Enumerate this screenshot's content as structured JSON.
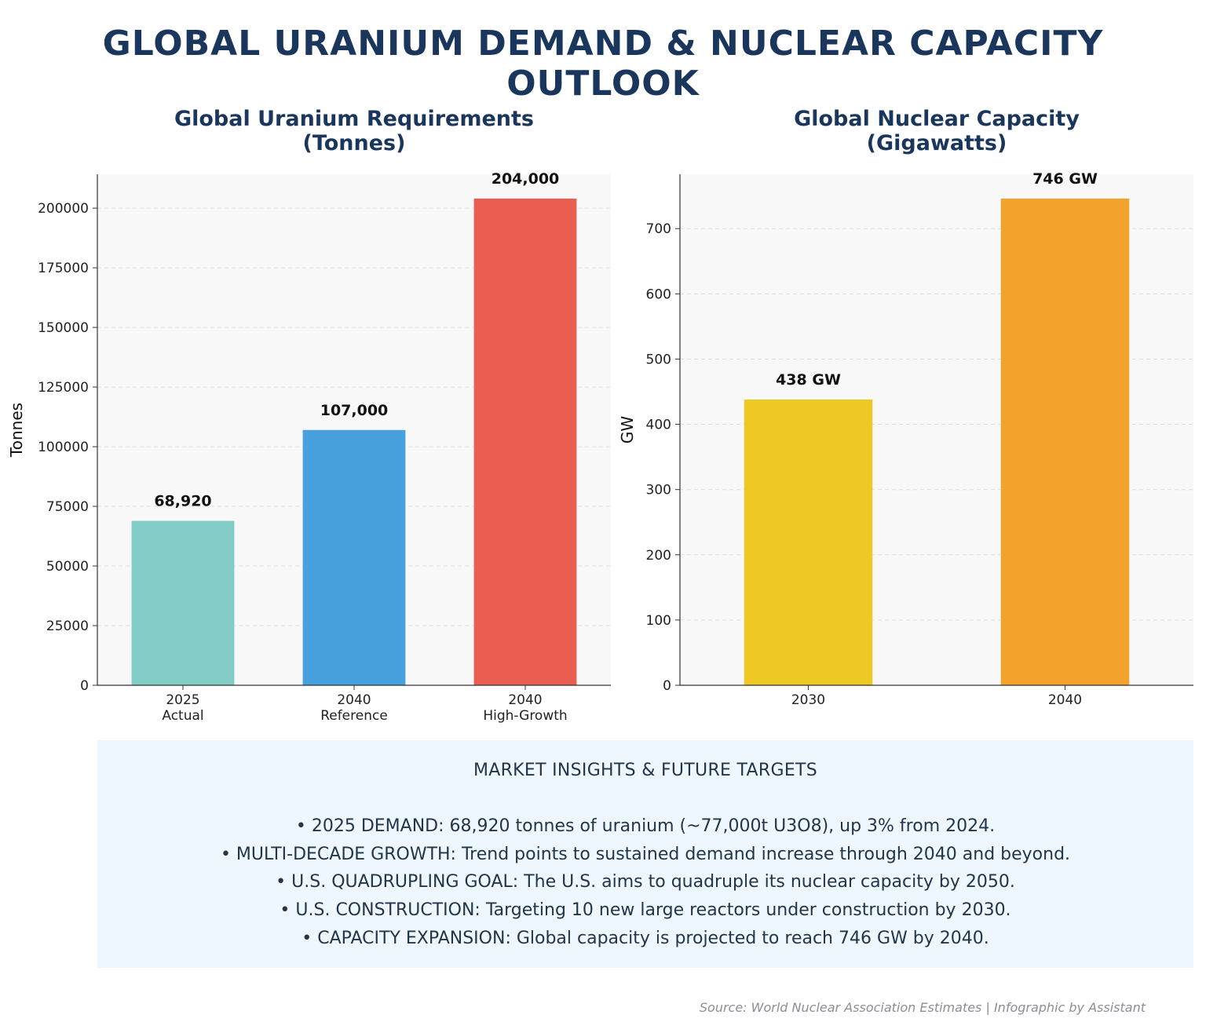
{
  "page": {
    "title": "GLOBAL URANIUM DEMAND & NUCLEAR CAPACITY OUTLOOK",
    "source": "Source: World Nuclear Association Estimates | Infographic by Assistant"
  },
  "chart_data": [
    {
      "type": "bar",
      "title": "Global Uranium Requirements\n(Tonnes)",
      "xlabel": "",
      "ylabel": "Tonnes",
      "categories": [
        "2025\nActual",
        "2040\nReference",
        "2040\nHigh-Growth"
      ],
      "values": [
        68920,
        107000,
        204000
      ],
      "data_labels": [
        "68,920",
        "107,000",
        "204,000"
      ],
      "colors": [
        "#83cbc5",
        "#48a1de",
        "#e95e51"
      ],
      "ylim": [
        0,
        214200
      ],
      "yticks": [
        0,
        25000,
        50000,
        75000,
        100000,
        125000,
        150000,
        175000,
        200000
      ],
      "grid": true,
      "legend": "none"
    },
    {
      "type": "bar",
      "title": "Global Nuclear Capacity\n(Gigawatts)",
      "xlabel": "",
      "ylabel": "GW",
      "categories": [
        "2030",
        "2040"
      ],
      "values": [
        438,
        746
      ],
      "data_labels": [
        "438 GW",
        "746 GW"
      ],
      "colors": [
        "#eec825",
        "#f1a32c"
      ],
      "ylim": [
        0,
        783.3
      ],
      "yticks": [
        0,
        100,
        200,
        300,
        400,
        500,
        600,
        700
      ],
      "grid": true,
      "legend": "none"
    }
  ],
  "insights": {
    "heading": "MARKET INSIGHTS & FUTURE TARGETS",
    "items": [
      "• 2025 DEMAND: 68,920 tonnes of uranium (~77,000t U3O8), up 3% from 2024.",
      "• MULTI-DECADE GROWTH: Trend points to sustained demand increase through 2040 and beyond.",
      "• U.S. QUADRUPLING GOAL: The U.S. aims to quadruple its nuclear capacity by 2050.",
      "• U.S. CONSTRUCTION: Targeting 10 new large reactors under construction by 2030.",
      "• CAPACITY EXPANSION: Global capacity is projected to reach 746 GW by 2040."
    ]
  }
}
